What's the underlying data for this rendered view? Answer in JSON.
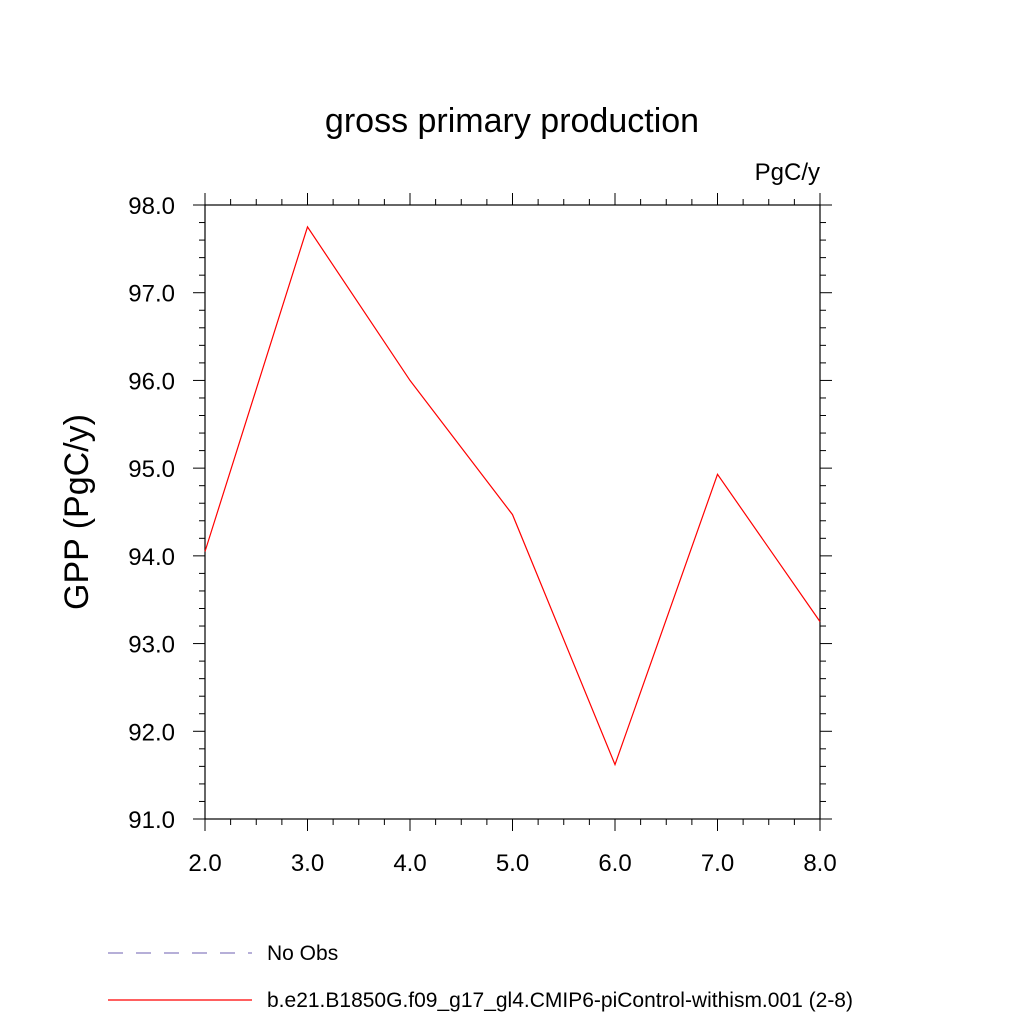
{
  "chart_data": {
    "type": "line",
    "title": "gross primary production",
    "units_label": "PgC/y",
    "ylabel": "GPP  (PgC/y)",
    "xlabel": "",
    "xlim": [
      2,
      8
    ],
    "ylim": [
      91,
      98
    ],
    "x_ticks": [
      "2.0",
      "3.0",
      "4.0",
      "5.0",
      "6.0",
      "7.0",
      "8.0"
    ],
    "y_ticks": [
      "91.0",
      "92.0",
      "93.0",
      "94.0",
      "95.0",
      "96.0",
      "97.0",
      "98.0"
    ],
    "series": [
      {
        "name": "b.e21.B1850G.f09_g17_gl4.CMIP6-piControl-withism.001 (2-8)",
        "color": "#ff0000",
        "x": [
          2,
          3,
          4,
          5,
          6,
          7,
          8
        ],
        "y": [
          94.05,
          97.75,
          96.0,
          94.47,
          91.62,
          94.93,
          93.25
        ]
      }
    ],
    "legend": [
      {
        "label": "No Obs",
        "color": "#8a7fc0",
        "style": "dashed"
      },
      {
        "label": "b.e21.B1850G.f09_g17_gl4.CMIP6-piControl-withism.001 (2-8)",
        "color": "#ff0000",
        "style": "solid"
      }
    ],
    "grid": false,
    "legend_position": "bottom-left"
  }
}
